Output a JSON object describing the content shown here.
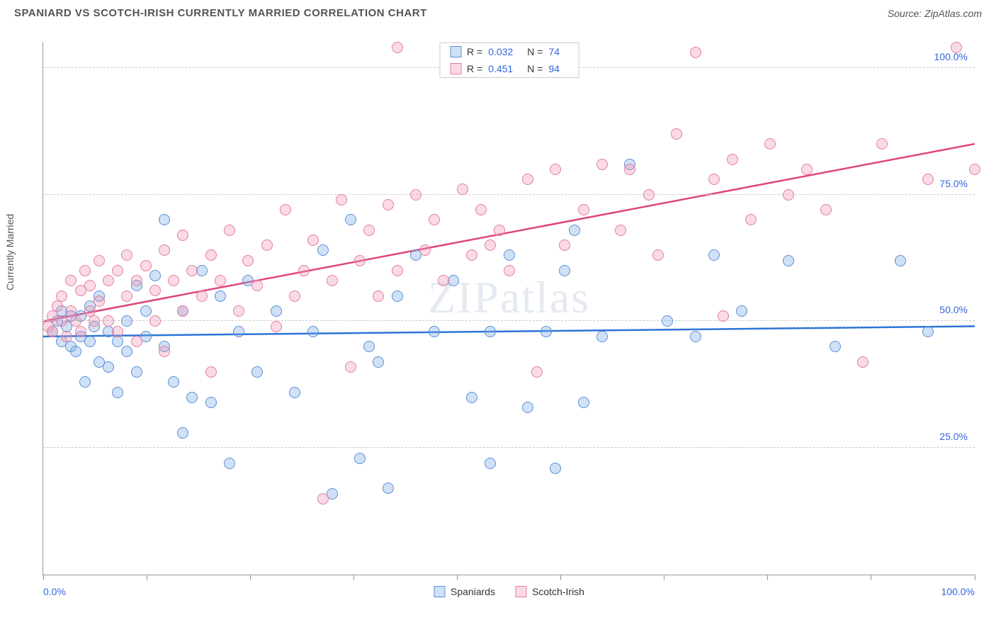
{
  "header": {
    "title": "SPANIARD VS SCOTCH-IRISH CURRENTLY MARRIED CORRELATION CHART",
    "source": "Source: ZipAtlas.com"
  },
  "chart": {
    "type": "scatter",
    "y_axis_label": "Currently Married",
    "xlim": [
      0,
      100
    ],
    "ylim": [
      0,
      105
    ],
    "x_label_min": "0.0%",
    "x_label_max": "100.0%",
    "x_label_color": "#3366dd",
    "y_ticks": [
      {
        "value": 25,
        "label": "25.0%"
      },
      {
        "value": 50,
        "label": "50.0%"
      },
      {
        "value": 75,
        "label": "75.0%"
      },
      {
        "value": 100,
        "label": "100.0%"
      }
    ],
    "y_tick_color": "#3366dd",
    "x_tick_positions": [
      0,
      11.1,
      22.2,
      33.3,
      44.4,
      55.5,
      66.6,
      77.7,
      88.8,
      100
    ],
    "grid_color": "#cccccc",
    "background_color": "#ffffff",
    "marker_radius": 8,
    "marker_border_width": 1.5,
    "watermark": "ZIPatlas",
    "series": [
      {
        "name": "Spaniards",
        "fill": "rgba(120,170,230,0.35)",
        "stroke": "#5a8fd6",
        "r_value": "0.032",
        "n_value": "74",
        "trend": {
          "y_at_x0": 47,
          "y_at_x100": 49,
          "color": "#2d74d6",
          "width": 2.5
        },
        "points": [
          [
            1,
            48
          ],
          [
            1.5,
            50
          ],
          [
            2,
            46
          ],
          [
            2,
            52
          ],
          [
            2.5,
            49
          ],
          [
            3,
            45
          ],
          [
            3,
            51
          ],
          [
            3.5,
            44
          ],
          [
            4,
            47
          ],
          [
            4,
            51
          ],
          [
            4.5,
            38
          ],
          [
            5,
            53
          ],
          [
            5,
            46
          ],
          [
            5.5,
            49
          ],
          [
            6,
            42
          ],
          [
            6,
            55
          ],
          [
            7,
            48
          ],
          [
            7,
            41
          ],
          [
            8,
            46
          ],
          [
            8,
            36
          ],
          [
            9,
            50
          ],
          [
            9,
            44
          ],
          [
            10,
            57
          ],
          [
            10,
            40
          ],
          [
            11,
            52
          ],
          [
            11,
            47
          ],
          [
            12,
            59
          ],
          [
            13,
            45
          ],
          [
            13,
            70
          ],
          [
            14,
            38
          ],
          [
            15,
            52
          ],
          [
            15,
            28
          ],
          [
            16,
            35
          ],
          [
            17,
            60
          ],
          [
            18,
            34
          ],
          [
            19,
            55
          ],
          [
            20,
            22
          ],
          [
            21,
            48
          ],
          [
            22,
            58
          ],
          [
            23,
            40
          ],
          [
            25,
            52
          ],
          [
            27,
            36
          ],
          [
            29,
            48
          ],
          [
            30,
            64
          ],
          [
            31,
            16
          ],
          [
            33,
            70
          ],
          [
            34,
            23
          ],
          [
            35,
            45
          ],
          [
            36,
            42
          ],
          [
            37,
            17
          ],
          [
            38,
            55
          ],
          [
            40,
            63
          ],
          [
            42,
            48
          ],
          [
            44,
            58
          ],
          [
            46,
            35
          ],
          [
            48,
            22
          ],
          [
            48,
            48
          ],
          [
            50,
            63
          ],
          [
            52,
            33
          ],
          [
            54,
            48
          ],
          [
            55,
            21
          ],
          [
            56,
            60
          ],
          [
            57,
            68
          ],
          [
            58,
            34
          ],
          [
            60,
            47
          ],
          [
            63,
            81
          ],
          [
            67,
            50
          ],
          [
            70,
            47
          ],
          [
            72,
            63
          ],
          [
            75,
            52
          ],
          [
            80,
            62
          ],
          [
            85,
            45
          ],
          [
            92,
            62
          ],
          [
            95,
            48
          ]
        ]
      },
      {
        "name": "Scotch-Irish",
        "fill": "rgba(240,150,180,0.35)",
        "stroke": "#e07fa0",
        "r_value": "0.451",
        "n_value": "94",
        "trend": {
          "y_at_x0": 50,
          "y_at_x100": 85,
          "color": "#e0457a",
          "width": 2.5
        },
        "points": [
          [
            0.5,
            49
          ],
          [
            1,
            51
          ],
          [
            1,
            48
          ],
          [
            1.5,
            53
          ],
          [
            2,
            50
          ],
          [
            2,
            55
          ],
          [
            2.5,
            47
          ],
          [
            3,
            52
          ],
          [
            3,
            58
          ],
          [
            3.5,
            50
          ],
          [
            4,
            56
          ],
          [
            4,
            48
          ],
          [
            4.5,
            60
          ],
          [
            5,
            52
          ],
          [
            5,
            57
          ],
          [
            5.5,
            50
          ],
          [
            6,
            62
          ],
          [
            6,
            54
          ],
          [
            7,
            58
          ],
          [
            7,
            50
          ],
          [
            8,
            60
          ],
          [
            8,
            48
          ],
          [
            9,
            55
          ],
          [
            9,
            63
          ],
          [
            10,
            58
          ],
          [
            10,
            46
          ],
          [
            11,
            61
          ],
          [
            12,
            56
          ],
          [
            12,
            50
          ],
          [
            13,
            64
          ],
          [
            13,
            44
          ],
          [
            14,
            58
          ],
          [
            15,
            67
          ],
          [
            15,
            52
          ],
          [
            16,
            60
          ],
          [
            17,
            55
          ],
          [
            18,
            63
          ],
          [
            18,
            40
          ],
          [
            19,
            58
          ],
          [
            20,
            68
          ],
          [
            21,
            52
          ],
          [
            22,
            62
          ],
          [
            23,
            57
          ],
          [
            24,
            65
          ],
          [
            25,
            49
          ],
          [
            26,
            72
          ],
          [
            27,
            55
          ],
          [
            28,
            60
          ],
          [
            29,
            66
          ],
          [
            30,
            15
          ],
          [
            31,
            58
          ],
          [
            32,
            74
          ],
          [
            33,
            41
          ],
          [
            34,
            62
          ],
          [
            35,
            68
          ],
          [
            36,
            55
          ],
          [
            37,
            73
          ],
          [
            38,
            60
          ],
          [
            38,
            104
          ],
          [
            40,
            75
          ],
          [
            41,
            64
          ],
          [
            42,
            70
          ],
          [
            43,
            58
          ],
          [
            45,
            76
          ],
          [
            46,
            63
          ],
          [
            47,
            72
          ],
          [
            48,
            65
          ],
          [
            49,
            68
          ],
          [
            50,
            60
          ],
          [
            52,
            78
          ],
          [
            53,
            40
          ],
          [
            55,
            80
          ],
          [
            56,
            65
          ],
          [
            58,
            72
          ],
          [
            60,
            81
          ],
          [
            62,
            68
          ],
          [
            63,
            80
          ],
          [
            65,
            75
          ],
          [
            66,
            63
          ],
          [
            68,
            87
          ],
          [
            70,
            103
          ],
          [
            72,
            78
          ],
          [
            73,
            51
          ],
          [
            74,
            82
          ],
          [
            76,
            70
          ],
          [
            78,
            85
          ],
          [
            80,
            75
          ],
          [
            82,
            80
          ],
          [
            84,
            72
          ],
          [
            88,
            42
          ],
          [
            90,
            85
          ],
          [
            95,
            78
          ],
          [
            98,
            104
          ],
          [
            100,
            80
          ]
        ]
      }
    ],
    "legend_bottom": [
      {
        "label": "Spaniards",
        "swatch_fill": "rgba(120,170,230,0.35)",
        "swatch_stroke": "#5a8fd6"
      },
      {
        "label": "Scotch-Irish",
        "swatch_fill": "rgba(240,150,180,0.35)",
        "swatch_stroke": "#e07fa0"
      }
    ]
  }
}
